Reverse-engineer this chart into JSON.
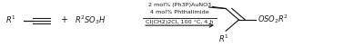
{
  "background_color": "#ffffff",
  "figsize": [
    3.78,
    0.51
  ],
  "dpi": 100,
  "text_above1": "2 mol% (Ph3P)AuNO3",
  "text_above2": "4 mol% Phthalimide",
  "text_below": "Cl(CH2)2Cl, 100 °C, 4 h",
  "fontsize_reaction": 6.0,
  "fontsize_arrow_text": 4.6,
  "text_color": "#1a1a1a"
}
